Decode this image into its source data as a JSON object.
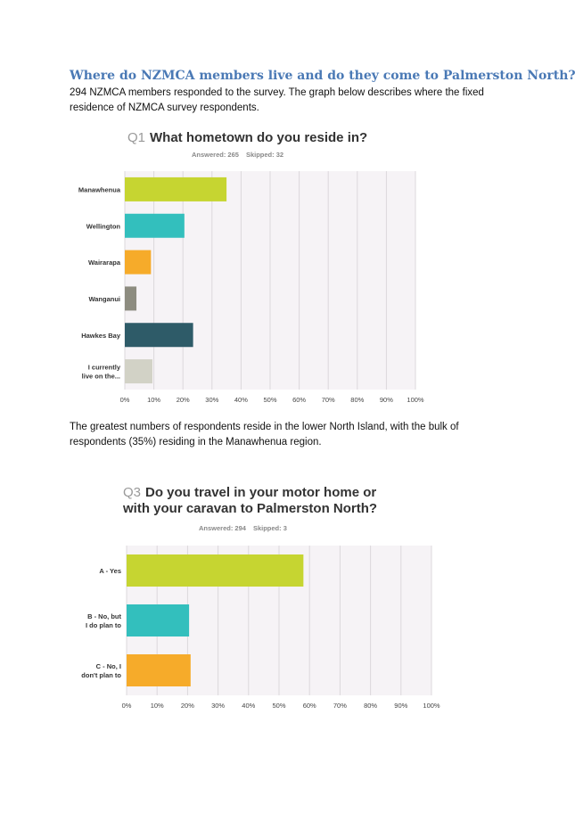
{
  "document": {
    "heading": "Where do NZMCA members live and do they come to Palmerston North?",
    "intro": "294 NZMCA members responded to the survey. The graph below describes where the fixed residence of NZMCA survey respondents.",
    "summary": "The greatest numbers of respondents reside in the lower North Island, with the bulk of respondents (35%) residing in the Manawhenua region."
  },
  "chart_data": [
    {
      "type": "bar",
      "orientation": "horizontal",
      "question_number": "Q1",
      "title": "What hometown do you reside in?",
      "title_lines": [
        "What hometown do you reside in?"
      ],
      "answered_label": "Answered: 265",
      "skipped_label": "Skipped: 32",
      "categories": [
        "Manawhenua",
        "Wellington",
        "Wairarapa",
        "Wanganui",
        "Hawkes Bay",
        "I currently live on the..."
      ],
      "category_lines": [
        [
          "Manawhenua"
        ],
        [
          "Wellington"
        ],
        [
          "Wairarapa"
        ],
        [
          "Wanganui"
        ],
        [
          "Hawkes Bay"
        ],
        [
          "I currently",
          "live on the..."
        ]
      ],
      "values": [
        35,
        20.5,
        9,
        4,
        23.5,
        9.5
      ],
      "colors": [
        "#c6d531",
        "#33bfbd",
        "#f6ab2a",
        "#8d8c80",
        "#2e5b68",
        "#d2d2c6"
      ],
      "xlim": [
        0,
        100
      ],
      "ticks": [
        "0%",
        "10%",
        "20%",
        "30%",
        "40%",
        "50%",
        "60%",
        "70%",
        "80%",
        "90%",
        "100%"
      ],
      "grid": true,
      "legend": "none"
    },
    {
      "type": "bar",
      "orientation": "horizontal",
      "question_number": "Q3",
      "title": "Do you travel in your motor home or with your caravan to Palmerston North?",
      "title_lines": [
        "Do you travel in your motor home or",
        "with your caravan to Palmerston North?"
      ],
      "answered_label": "Answered: 294",
      "skipped_label": "Skipped: 3",
      "categories": [
        "A - Yes",
        "B - No, but I do plan to",
        "C - No, I don't plan to"
      ],
      "category_lines": [
        [
          "A - Yes"
        ],
        [
          "B - No, but",
          "I do plan to"
        ],
        [
          "C - No, I",
          "don't plan to"
        ]
      ],
      "values": [
        58,
        20.5,
        21
      ],
      "colors": [
        "#c6d531",
        "#33bfbd",
        "#f6ab2a"
      ],
      "xlim": [
        0,
        100
      ],
      "ticks": [
        "0%",
        "10%",
        "20%",
        "30%",
        "40%",
        "50%",
        "60%",
        "70%",
        "80%",
        "90%",
        "100%"
      ],
      "grid": true,
      "legend": "none"
    }
  ]
}
